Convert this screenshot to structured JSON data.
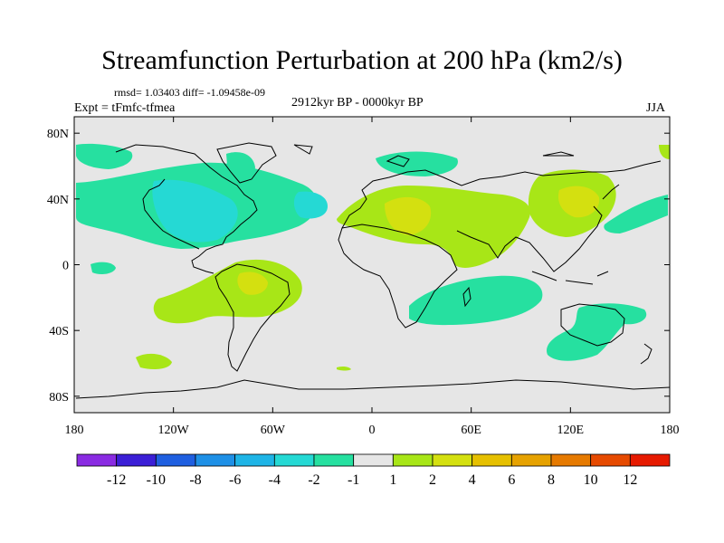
{
  "title": "Streamfunction Perturbation at 200 hPa (km2/s)",
  "stats": "rmsd= 1.03403 diff= -1.09458e-09",
  "experiment": "Expt = tFmfc-tfmea",
  "period": "2912kyr BP - 0000kyr BP",
  "season": "JJA",
  "map": {
    "projection": "cylindrical equidistant",
    "lon_range": [
      -180,
      180
    ],
    "lat_range": [
      -90,
      90
    ],
    "x_ticks": [
      {
        "lon": -180,
        "label": "180"
      },
      {
        "lon": -120,
        "label": "120W"
      },
      {
        "lon": -60,
        "label": "60W"
      },
      {
        "lon": 0,
        "label": "0"
      },
      {
        "lon": 60,
        "label": "60E"
      },
      {
        "lon": 120,
        "label": "120E"
      },
      {
        "lon": 180,
        "label": "180"
      }
    ],
    "y_ticks": [
      {
        "lat": 80,
        "label": "80N"
      },
      {
        "lat": 40,
        "label": "40N"
      },
      {
        "lat": 0,
        "label": "0"
      },
      {
        "lat": -40,
        "label": "40S"
      },
      {
        "lat": -80,
        "label": "80S"
      }
    ],
    "background_color": "#e6e6e6",
    "coast_color": "#000000"
  },
  "colorbar": {
    "colors": [
      "#8a2be2",
      "#3b1fd6",
      "#1f5fe0",
      "#1e90e6",
      "#1eb4e6",
      "#25d9d4",
      "#26e0a0",
      "#e6e6e6",
      "#a8e617",
      "#d4e010",
      "#e6c000",
      "#e6a200",
      "#e67a00",
      "#e64a00",
      "#e61a00"
    ],
    "labels": [
      "-12",
      "-10",
      "-8",
      "-6",
      "-4",
      "-2",
      "-1",
      "1",
      "2",
      "4",
      "6",
      "8",
      "10",
      "12"
    ]
  },
  "chart_data": {
    "type": "contour-map",
    "variable": "streamfunction perturbation",
    "level": "200 hPa",
    "units": "km2/s",
    "levels": [
      -12,
      -10,
      -8,
      -6,
      -4,
      -2,
      -1,
      1,
      2,
      4,
      6,
      8,
      10,
      12
    ],
    "anomaly_regions": [
      {
        "lon": -175,
        "lat": 70,
        "level": -2
      },
      {
        "lon": -110,
        "lat": 43,
        "level": -2
      },
      {
        "lon": -90,
        "lat": 40,
        "level": -4
      },
      {
        "lon": -45,
        "lat": 42,
        "level": -2
      },
      {
        "lon": -55,
        "lat": 72,
        "level": -2
      },
      {
        "lon": 30,
        "lat": 78,
        "level": -2
      },
      {
        "lon": -170,
        "lat": 0,
        "level": -2
      },
      {
        "lon": -80,
        "lat": -10,
        "level": 2
      },
      {
        "lon": -70,
        "lat": -12,
        "level": 4
      },
      {
        "lon": -148,
        "lat": -47,
        "level": 2
      },
      {
        "lon": 30,
        "lat": 28,
        "level": 2
      },
      {
        "lon": 30,
        "lat": 35,
        "level": 4
      },
      {
        "lon": 120,
        "lat": 42,
        "level": 2
      },
      {
        "lon": 125,
        "lat": 43,
        "level": 4
      },
      {
        "lon": 155,
        "lat": 30,
        "level": -2
      },
      {
        "lon": 55,
        "lat": -30,
        "level": -2
      },
      {
        "lon": 130,
        "lat": -45,
        "level": -2
      },
      {
        "lon": 180,
        "lat": 70,
        "level": 2
      }
    ]
  }
}
